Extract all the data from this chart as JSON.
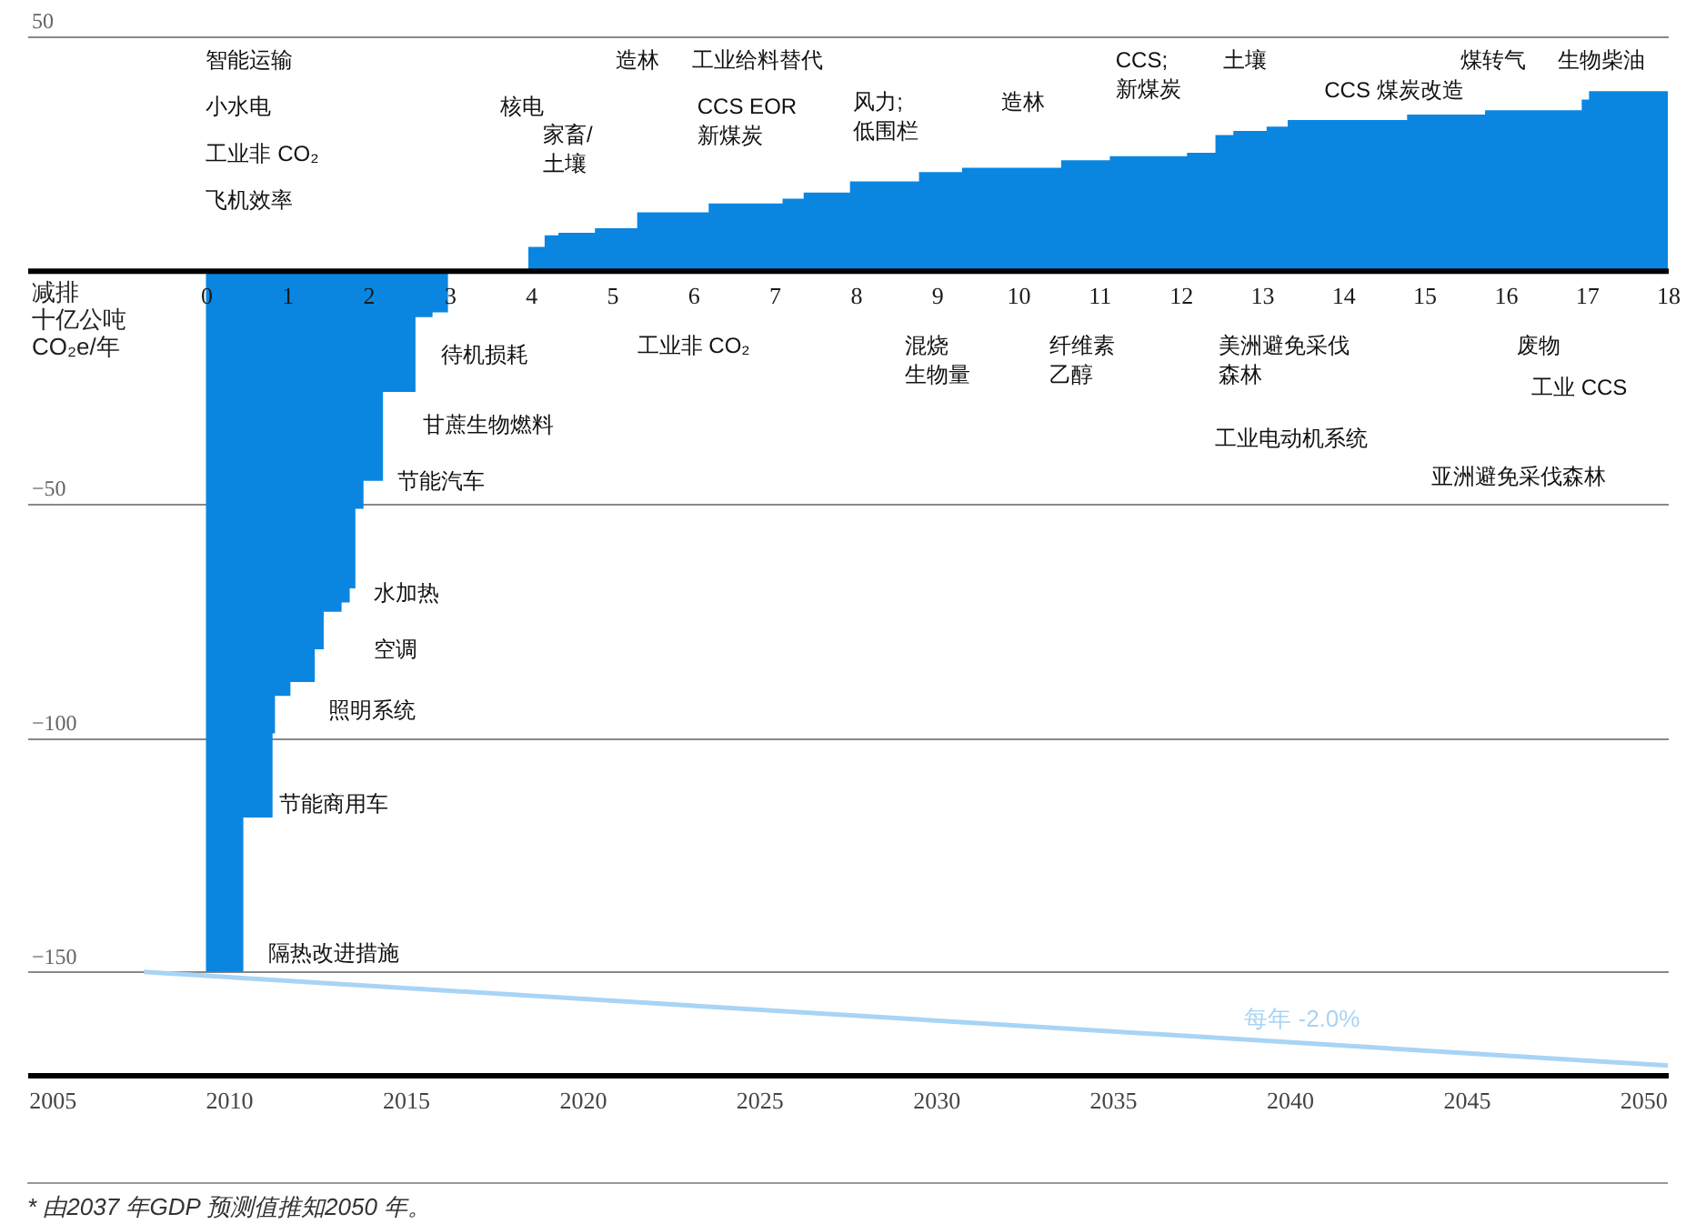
{
  "chart_data": {
    "type": "area",
    "ylabel": "减排十亿公吨CO₂e/年",
    "xlim": [
      -2.2,
      18
    ],
    "xticks": [
      0,
      1,
      2,
      3,
      4,
      5,
      6,
      7,
      8,
      9,
      10,
      11,
      12,
      13,
      14,
      15,
      16,
      17,
      18
    ],
    "ylim": [
      -172,
      50
    ],
    "yticks": [
      -150,
      -100,
      -50,
      50
    ],
    "x2lim": [
      2004.3,
      2050.7
    ],
    "x2ticks": [
      2005,
      2010,
      2015,
      2020,
      2025,
      2030,
      2035,
      2040,
      2045,
      2050
    ],
    "grid": "y",
    "series": [
      {
        "color": "#0a86e0",
        "x": [
          0,
          0.46,
          0.46,
          0.82,
          0.82,
          0.85,
          0.85,
          1.04,
          1.04,
          1.34,
          1.34,
          1.45,
          1.45,
          1.67,
          1.67,
          1.77,
          1.77,
          1.84,
          1.84,
          1.94,
          1.94,
          2.18,
          2.18,
          2.58,
          2.58,
          2.79,
          2.79,
          2.98,
          2.98,
          3.97,
          3.97,
          4.17,
          4.17,
          4.34,
          4.34,
          4.79,
          4.79,
          5.31,
          5.31,
          6.19,
          6.19,
          7.1,
          7.1,
          7.36,
          7.36,
          7.93,
          7.93,
          8.78,
          8.78,
          9.31,
          9.31,
          10.53,
          10.53,
          11.13,
          11.13,
          12.08,
          12.08,
          12.43,
          12.43,
          12.65,
          12.65,
          13.06,
          13.06,
          13.32,
          13.32,
          14.79,
          14.79,
          15.75,
          15.75,
          16.94,
          16.94,
          17.03,
          17.03,
          18
        ],
        "values": [
          -150,
          -150,
          -117,
          -117,
          -99,
          -99,
          -91,
          -91,
          -88,
          -88,
          -81,
          -81,
          -73,
          -73,
          -71,
          -71,
          -68,
          -68,
          -51,
          -51,
          -45,
          -45,
          -26,
          -26,
          -10,
          -10,
          -9,
          -9,
          0,
          0,
          5,
          5,
          7.5,
          7.5,
          8,
          8,
          9,
          9,
          12.4,
          12.4,
          14.3,
          14.3,
          15.3,
          15.3,
          16.6,
          16.6,
          19,
          19,
          21,
          21,
          21.9,
          21.9,
          23.5,
          23.5,
          24.4,
          24.4,
          25.1,
          25.1,
          28.9,
          28.9,
          29.8,
          29.8,
          30.7,
          30.7,
          32.1,
          32.1,
          33.3,
          33.3,
          34.2,
          34.2,
          36.5,
          36.5,
          38.3,
          38.3
        ]
      },
      {
        "type": "line",
        "name": "每年 -2.0%",
        "color": "#a8d4f5",
        "axis": "x2",
        "x": [
          2007.6,
          2050.7
        ],
        "values": [
          -150,
          -170
        ]
      }
    ],
    "annotations": [
      "智能运输",
      "小水电",
      "工业非 CO₂",
      "飞机效率",
      "核电",
      "家畜/土壤",
      "造林",
      "工业给料替代",
      "CCS EOR新煤炭",
      "风力;低围栏",
      "造林",
      "CCS;新煤炭",
      "土壤",
      "煤转气",
      "CCS 煤炭改造",
      "生物柴油",
      "待机损耗",
      "甘蔗生物燃料",
      "节能汽车",
      "水加热",
      "空调",
      "照明系统",
      "节能商用车",
      "隔热改进措施",
      "工业非 CO₂",
      "混烧生物量",
      "纤维素乙醇",
      "美洲避免采伐森林",
      "工业电动机系统",
      "废物",
      "工业 CCS",
      "亚洲避免采伐森林",
      "* 由2037 年GDP 预测值推知2050 年。"
    ]
  }
}
